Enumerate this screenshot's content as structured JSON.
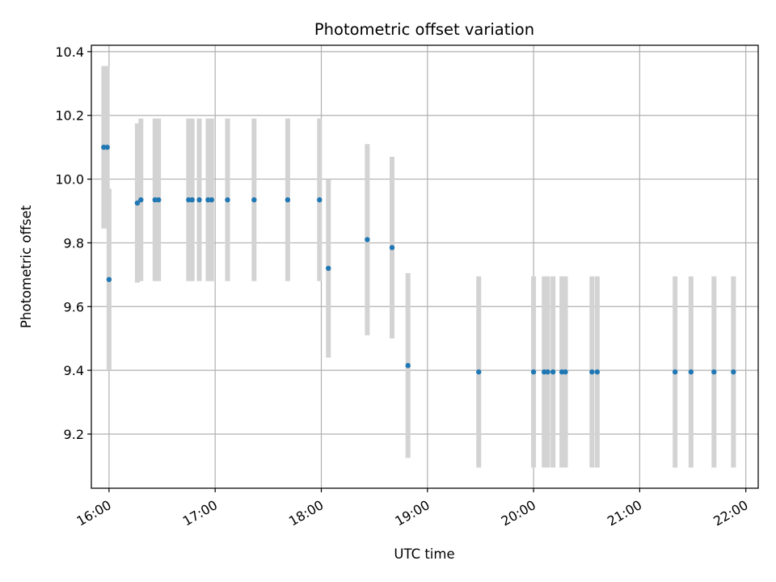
{
  "chart_data": {
    "type": "scatter",
    "title": "Photometric offset variation",
    "xlabel": "UTC time",
    "ylabel": "Photometric offset",
    "x_unit": "UTC time (HH:MM)",
    "xlim": [
      "15:50",
      "22:07"
    ],
    "ylim": [
      9.03,
      10.42
    ],
    "x_ticks": [
      "16:00",
      "17:00",
      "18:00",
      "19:00",
      "20:00",
      "21:00",
      "22:00"
    ],
    "y_ticks": [
      9.2,
      9.4,
      9.6,
      9.8,
      10.0,
      10.2,
      10.4
    ],
    "y_tick_labels": [
      "9.2",
      "9.4",
      "9.6",
      "9.8",
      "10.0",
      "10.2",
      "10.4"
    ],
    "grid": true,
    "legend": "none",
    "colors": {
      "points": "#1f77b4",
      "errorbars": "#d3d3d3",
      "grid": "#b0b0b0"
    },
    "points": [
      {
        "x": "15:57",
        "y": 10.1,
        "yerr": 0.255
      },
      {
        "x": "15:59",
        "y": 10.1,
        "yerr": 0.255
      },
      {
        "x": "16:00",
        "y": 9.685,
        "yerr": 0.285
      },
      {
        "x": "16:16",
        "y": 9.925,
        "yerr": 0.25
      },
      {
        "x": "16:18",
        "y": 9.935,
        "yerr": 0.255
      },
      {
        "x": "16:26",
        "y": 9.935,
        "yerr": 0.255
      },
      {
        "x": "16:28",
        "y": 9.935,
        "yerr": 0.255
      },
      {
        "x": "16:45",
        "y": 9.935,
        "yerr": 0.255
      },
      {
        "x": "16:47",
        "y": 9.935,
        "yerr": 0.255
      },
      {
        "x": "16:51",
        "y": 9.935,
        "yerr": 0.255
      },
      {
        "x": "16:56",
        "y": 9.935,
        "yerr": 0.255
      },
      {
        "x": "16:58",
        "y": 9.935,
        "yerr": 0.255
      },
      {
        "x": "17:07",
        "y": 9.935,
        "yerr": 0.255
      },
      {
        "x": "17:22",
        "y": 9.935,
        "yerr": 0.255
      },
      {
        "x": "17:41",
        "y": 9.935,
        "yerr": 0.255
      },
      {
        "x": "17:59",
        "y": 9.935,
        "yerr": 0.255
      },
      {
        "x": "18:04",
        "y": 9.72,
        "yerr": 0.28
      },
      {
        "x": "18:26",
        "y": 9.81,
        "yerr": 0.3
      },
      {
        "x": "18:40",
        "y": 9.785,
        "yerr": 0.285
      },
      {
        "x": "18:49",
        "y": 9.415,
        "yerr": 0.29
      },
      {
        "x": "19:29",
        "y": 9.395,
        "yerr": 0.3
      },
      {
        "x": "20:00",
        "y": 9.395,
        "yerr": 0.3
      },
      {
        "x": "20:06",
        "y": 9.395,
        "yerr": 0.3
      },
      {
        "x": "20:08",
        "y": 9.395,
        "yerr": 0.3
      },
      {
        "x": "20:11",
        "y": 9.395,
        "yerr": 0.3
      },
      {
        "x": "20:16",
        "y": 9.395,
        "yerr": 0.3
      },
      {
        "x": "20:18",
        "y": 9.395,
        "yerr": 0.3
      },
      {
        "x": "20:33",
        "y": 9.395,
        "yerr": 0.3
      },
      {
        "x": "20:36",
        "y": 9.395,
        "yerr": 0.3
      },
      {
        "x": "21:20",
        "y": 9.395,
        "yerr": 0.3
      },
      {
        "x": "21:29",
        "y": 9.395,
        "yerr": 0.3
      },
      {
        "x": "21:42",
        "y": 9.395,
        "yerr": 0.3
      },
      {
        "x": "21:53",
        "y": 9.395,
        "yerr": 0.3
      }
    ]
  }
}
